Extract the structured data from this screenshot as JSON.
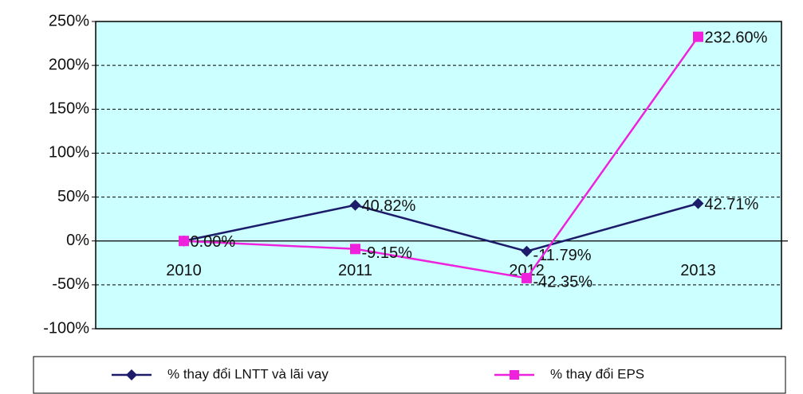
{
  "chart_data": {
    "type": "line",
    "categories": [
      "2010",
      "2011",
      "2012",
      "2013"
    ],
    "series": [
      {
        "name": "% thay đổi LNTT và lãi vay",
        "color": "#1c1c6b",
        "values": [
          0,
          40.82,
          -11.79,
          42.71
        ],
        "value_labels": [
          null,
          "40.82%",
          "-11.79%",
          "42.71%"
        ]
      },
      {
        "name": "% thay đổi EPS",
        "color": "#ee22dd",
        "values": [
          0,
          -9.15,
          -42.35,
          232.6
        ],
        "value_labels": [
          "0.00%",
          "-9.15%",
          "-42.35%",
          "232.60%"
        ]
      }
    ],
    "ylim": [
      -100,
      250
    ],
    "yticks": [
      {
        "value": -100,
        "label": "-100%"
      },
      {
        "value": -50,
        "label": "-50%"
      },
      {
        "value": 0,
        "label": "0%"
      },
      {
        "value": 50,
        "label": "50%"
      },
      {
        "value": 100,
        "label": "100%"
      },
      {
        "value": 150,
        "label": "150%"
      },
      {
        "value": 200,
        "label": "200%"
      },
      {
        "value": 250,
        "label": "250%"
      }
    ],
    "grid": true
  }
}
